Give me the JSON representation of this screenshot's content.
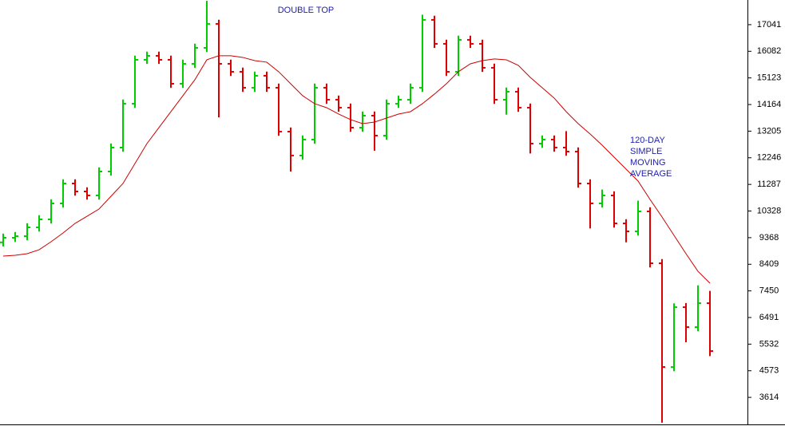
{
  "chart_data": {
    "type": "ohlc",
    "categories": [
      null,
      null,
      null,
      null,
      null,
      null,
      null,
      null,
      null,
      null,
      null,
      null,
      null,
      null,
      null,
      null,
      null,
      null,
      null,
      null,
      null,
      null,
      null,
      null,
      null,
      null,
      null,
      null,
      null,
      null,
      null,
      null,
      null,
      null,
      null,
      null,
      null,
      null,
      null,
      null,
      null,
      null,
      null,
      null,
      null,
      null,
      null,
      null,
      null,
      null,
      null,
      null,
      null,
      null,
      null,
      null,
      null,
      null,
      null,
      null
    ],
    "open": [
      9200,
      9365,
      9422,
      9738,
      10026,
      10601,
      11320,
      11032,
      10888,
      11751,
      12613,
      14195,
      15776,
      15920,
      15776,
      14913,
      15632,
      16207,
      17070,
      15632,
      15345,
      14770,
      15201,
      14770,
      13188,
      12326,
      12901,
      14770,
      14338,
      14051,
      13332,
      13763,
      13045,
      14195,
      14338,
      14770,
      17214,
      16351,
      15345,
      16495,
      16351,
      15488,
      14338,
      14626,
      14051,
      12757,
      12901,
      12613,
      12470,
      11320,
      10601,
      10888,
      9882,
      9595,
      10313,
      8445,
      4707,
      6863,
      6145,
      7007
    ],
    "high": [
      9515,
      9572,
      9888,
      10176,
      10751,
      11470,
      11470,
      11182,
      11901,
      12763,
      14345,
      15926,
      16070,
      16070,
      15926,
      15782,
      16357,
      17900,
      17220,
      15782,
      15495,
      15351,
      15351,
      14920,
      13338,
      13051,
      14920,
      14920,
      14488,
      14201,
      13913,
      13913,
      14345,
      14488,
      14920,
      17400,
      17364,
      16501,
      16645,
      16645,
      16501,
      15638,
      14776,
      14776,
      14201,
      13051,
      13051,
      13205,
      12620,
      11470,
      11100,
      11038,
      10032,
      10700,
      10463,
      8595,
      7000,
      7013,
      7650,
      7450
    ],
    "low": [
      9050,
      9215,
      9272,
      9588,
      9876,
      10451,
      10882,
      10738,
      10738,
      11601,
      12463,
      14045,
      15626,
      15626,
      14763,
      14763,
      15482,
      16057,
      13700,
      15195,
      14620,
      14620,
      14620,
      13038,
      11750,
      12176,
      12751,
      14188,
      13901,
      13182,
      13182,
      12500,
      12895,
      14045,
      14188,
      14620,
      16201,
      15195,
      15195,
      16201,
      15338,
      14188,
      13800,
      13901,
      12400,
      12607,
      12463,
      12320,
      11170,
      9700,
      10451,
      9732,
      9200,
      9445,
      8295,
      2700,
      4557,
      5600,
      5995,
      5100
    ],
    "close": [
      9365,
      9422,
      9738,
      10026,
      10601,
      11320,
      11032,
      10888,
      11751,
      12613,
      14195,
      15776,
      15920,
      15776,
      14913,
      15632,
      16207,
      17070,
      15632,
      15345,
      14770,
      15201,
      14770,
      13188,
      12326,
      12901,
      14770,
      14338,
      14051,
      13332,
      13763,
      13045,
      14195,
      14338,
      14770,
      17214,
      16351,
      15345,
      16495,
      16351,
      15488,
      14338,
      14626,
      14051,
      12757,
      12901,
      12613,
      12470,
      11320,
      10601,
      10888,
      9882,
      9595,
      10313,
      8445,
      4707,
      6863,
      6145,
      7007,
      5282
    ],
    "up_color": "#00cc00",
    "down_color": "#dd0000",
    "moving_average": {
      "color": "#cc0000",
      "values": [
        8703,
        8732,
        8790,
        8933,
        9221,
        9537,
        9882,
        10141,
        10400,
        10860,
        11320,
        12038,
        12757,
        13332,
        13907,
        14482,
        15057,
        15776,
        15920,
        15920,
        15862,
        15747,
        15690,
        15345,
        14913,
        14482,
        14195,
        14051,
        13821,
        13620,
        13476,
        13533,
        13677,
        13821,
        13907,
        14195,
        14540,
        14913,
        15345,
        15632,
        15747,
        15805,
        15776,
        15575,
        15143,
        14770,
        14396,
        13907,
        13476,
        13102,
        12700,
        12268,
        11837,
        11406,
        10745,
        10112,
        9451,
        8790,
        8157,
        7726
      ]
    },
    "annotations": [
      {
        "text": "DOUBLE TOP"
      },
      {
        "lines": [
          "120-DAY",
          "SIMPLE",
          "MOVING",
          "AVERAGE"
        ]
      }
    ],
    "annotation_color": "#2222aa",
    "ylim": [
      2640,
      17930
    ],
    "yticks": [
      17041,
      16082,
      15123,
      14164,
      13205,
      12246,
      11287,
      10328,
      9368,
      8409,
      7450,
      6491,
      5532,
      4573,
      3614
    ]
  }
}
